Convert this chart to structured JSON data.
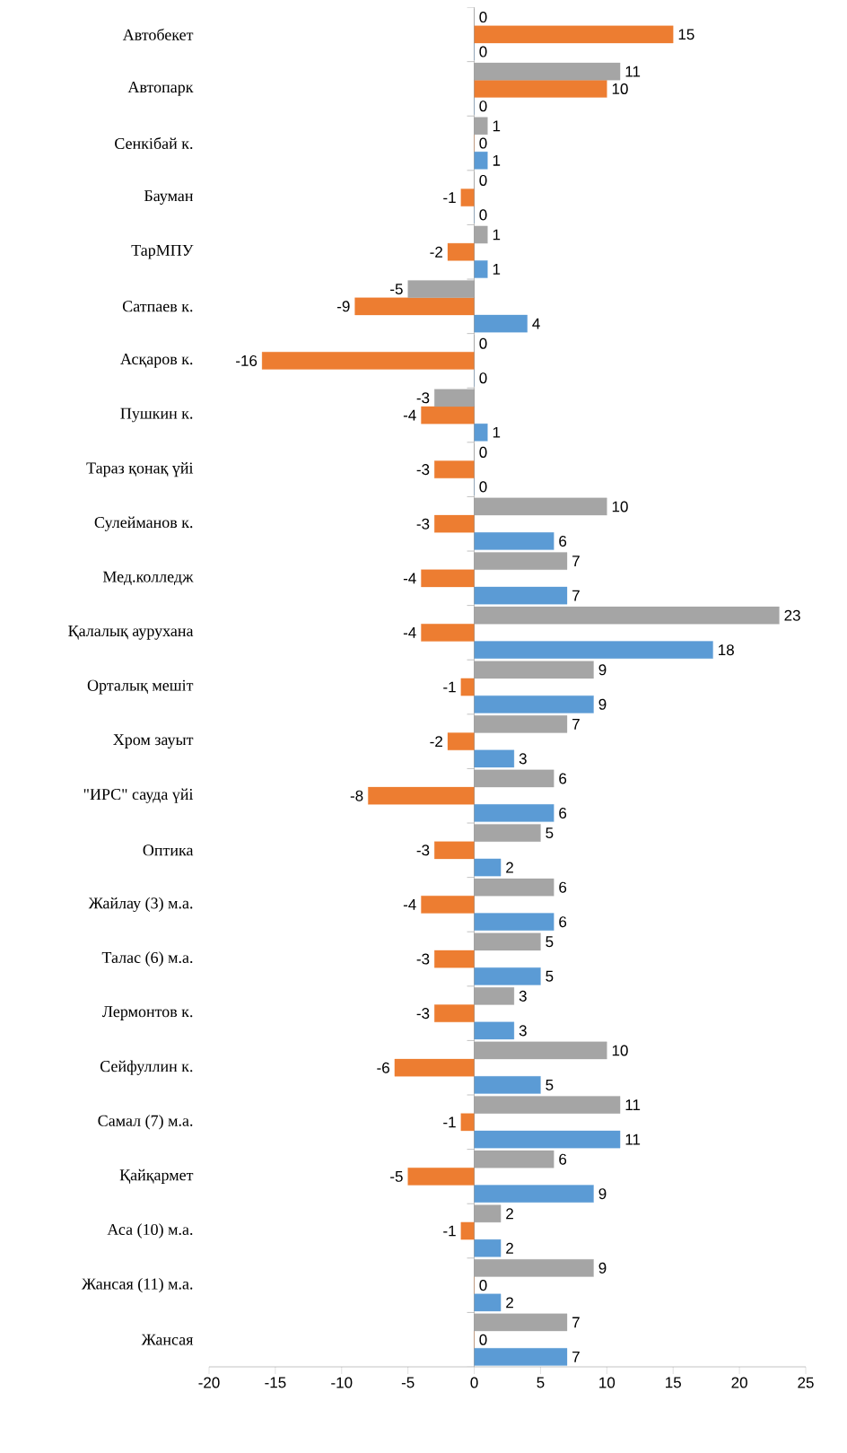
{
  "chart_data": {
    "type": "bar",
    "orientation": "horizontal",
    "categories": [
      "Автобекет",
      "Автопарк",
      "Сенкібай к.",
      "Бауман",
      "ТарМПУ",
      "Сатпаев к.",
      "Асқаров к.",
      "Пушкин к.",
      "Тараз қонақ үйі",
      "Сулейманов к.",
      "Мед.колледж",
      "Қалалық аурухана",
      "Орталық мешіт",
      "Хром зауыт",
      "\"ИРС\" сауда үйі",
      "Оптика",
      "Жайлау (3) м.а.",
      "Талас (6) м.а.",
      "Лермонтов к.",
      "Сейфуллин к.",
      "Самал (7) м.а.",
      "Қайқармет",
      "Аса (10) м.а.",
      "Жансая (11) м.а.",
      "Жансая"
    ],
    "series": [
      {
        "color": "#5b9bd5",
        "values": [
          0,
          0,
          1,
          0,
          1,
          4,
          0,
          1,
          0,
          6,
          7,
          18,
          9,
          3,
          6,
          2,
          6,
          5,
          3,
          5,
          11,
          9,
          2,
          2,
          7
        ]
      },
      {
        "color": "#ed7d31",
        "values": [
          15,
          10,
          0,
          -1,
          -2,
          -9,
          -16,
          -4,
          -3,
          -3,
          -4,
          -4,
          -1,
          -2,
          -8,
          -3,
          -4,
          -3,
          -3,
          -6,
          -1,
          -5,
          -1,
          0,
          0
        ]
      },
      {
        "color": "#a5a5a5",
        "values": [
          0,
          11,
          1,
          0,
          1,
          -5,
          0,
          -3,
          0,
          10,
          7,
          23,
          9,
          7,
          6,
          5,
          6,
          5,
          3,
          10,
          11,
          6,
          2,
          9,
          7
        ]
      }
    ],
    "xlim": [
      -20,
      25
    ],
    "xticks": [
      -20,
      -15,
      -10,
      -5,
      0,
      5,
      10,
      15,
      20,
      25
    ],
    "data_labels": true
  }
}
